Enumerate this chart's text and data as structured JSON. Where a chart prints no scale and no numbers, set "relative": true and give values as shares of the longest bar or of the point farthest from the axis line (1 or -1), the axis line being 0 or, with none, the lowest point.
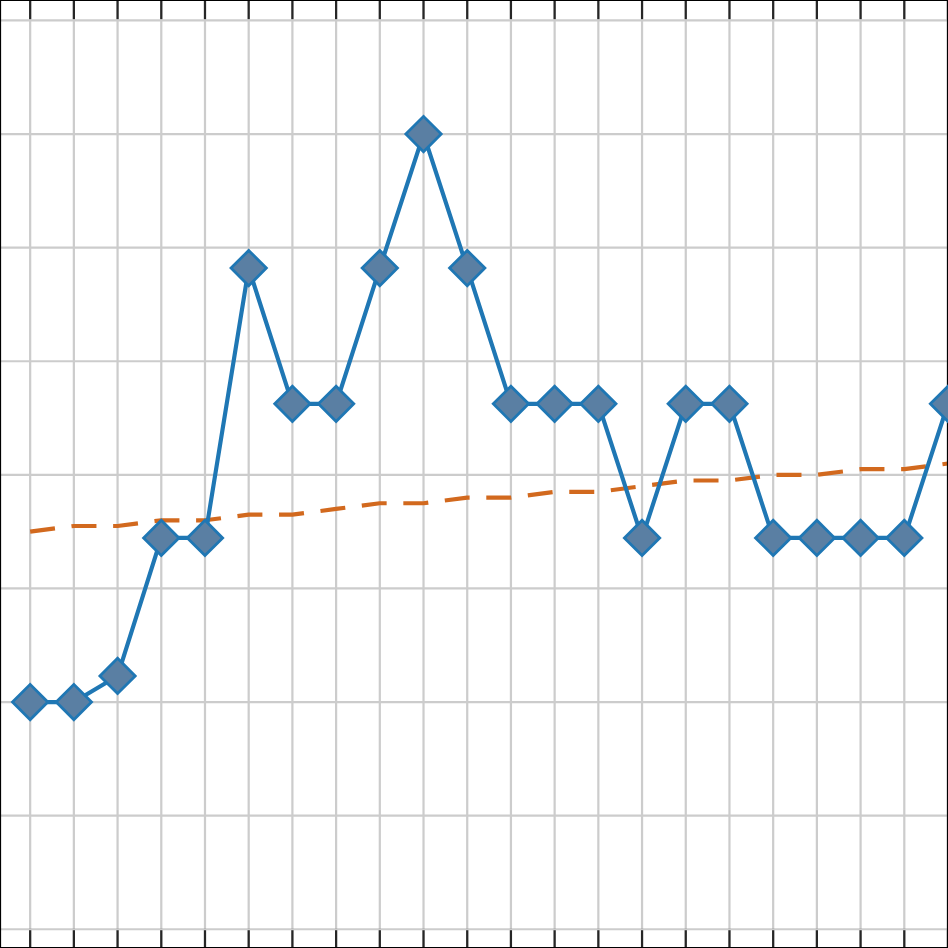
{
  "chart_data": {
    "type": "line",
    "relative": true,
    "categories": [
      null,
      null,
      null,
      null,
      null,
      null,
      null,
      null,
      null,
      null,
      null,
      null,
      null,
      null,
      null,
      null,
      null,
      null,
      null,
      null,
      null,
      null
    ],
    "series": [
      {
        "color": "#1f77b4",
        "values": [
          0,
          0,
          0.046,
          0.289,
          0.289,
          0.764,
          0.525,
          0.525,
          0.764,
          1,
          0.764,
          0.525,
          0.525,
          0.525,
          0.289,
          0.525,
          0.525,
          0.289,
          0.289,
          0.289,
          0.289,
          0.525
        ],
        "marker": "diamond",
        "line_style": "solid"
      },
      {
        "type": "line",
        "color": "#d2691e",
        "values": [
          0.3,
          0.31,
          0.31,
          0.32,
          0.32,
          0.33,
          0.33,
          0.34,
          0.35,
          0.35,
          0.36,
          0.36,
          0.37,
          0.37,
          0.38,
          0.39,
          0.39,
          0.4,
          0.4,
          0.41,
          0.41,
          0.42
        ],
        "marker": "none",
        "line_style": "dashed"
      }
    ],
    "grid": true,
    "legend": false
  }
}
